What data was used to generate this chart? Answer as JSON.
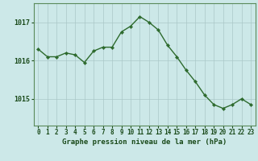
{
  "x": [
    0,
    1,
    2,
    3,
    4,
    5,
    6,
    7,
    8,
    9,
    10,
    11,
    12,
    13,
    14,
    15,
    16,
    17,
    18,
    19,
    20,
    21,
    22,
    23
  ],
  "y": [
    1016.3,
    1016.1,
    1016.1,
    1016.2,
    1016.15,
    1015.95,
    1016.25,
    1016.35,
    1016.35,
    1016.75,
    1016.9,
    1017.15,
    1017.0,
    1016.8,
    1016.4,
    1016.1,
    1015.75,
    1015.45,
    1015.1,
    1014.85,
    1014.75,
    1014.85,
    1015.0,
    1014.85
  ],
  "line_color": "#2d6a2d",
  "marker": "D",
  "marker_size": 2.2,
  "linewidth": 1.0,
  "bg_color": "#cce8e8",
  "plot_bg_color": "#cce8e8",
  "grid_color": "#aac8c8",
  "xlabel": "Graphe pression niveau de la mer (hPa)",
  "xlabel_color": "#1a4a1a",
  "xlabel_fontsize": 6.5,
  "tick_color": "#1a4a1a",
  "tick_fontsize": 5.5,
  "ytick_fontsize": 6,
  "yticks": [
    1015,
    1016,
    1017
  ],
  "ylim": [
    1014.3,
    1017.5
  ],
  "xlim": [
    -0.5,
    23.5
  ],
  "border_color": "#5a8a5a"
}
